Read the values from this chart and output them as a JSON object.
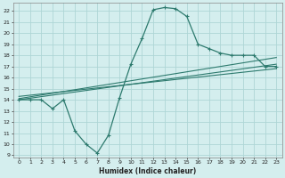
{
  "xlabel": "Humidex (Indice chaleur)",
  "bg_color": "#d4eeee",
  "grid_color": "#aed6d6",
  "line_color": "#2d7a6e",
  "xlim": [
    -0.5,
    23.5
  ],
  "ylim": [
    8.8,
    22.7
  ],
  "yticks": [
    9,
    10,
    11,
    12,
    13,
    14,
    15,
    16,
    17,
    18,
    19,
    20,
    21,
    22
  ],
  "xticks": [
    0,
    1,
    2,
    3,
    4,
    5,
    6,
    7,
    8,
    9,
    10,
    11,
    12,
    13,
    14,
    15,
    16,
    17,
    18,
    19,
    20,
    21,
    22,
    23
  ],
  "main_x": [
    0,
    1,
    2,
    3,
    4,
    5,
    6,
    7,
    8,
    9,
    10,
    11,
    12,
    13,
    14,
    15,
    16,
    17,
    18,
    19,
    20,
    21,
    22,
    23
  ],
  "main_y": [
    14.0,
    14.0,
    14.0,
    13.2,
    14.0,
    11.2,
    10.0,
    9.2,
    10.8,
    14.2,
    17.2,
    19.5,
    22.1,
    22.3,
    22.2,
    21.5,
    19.0,
    18.6,
    18.2,
    18.0,
    18.0,
    18.0,
    17.0,
    17.0
  ],
  "trend1_x": [
    0,
    23
  ],
  "trend1_y": [
    14.0,
    17.2
  ],
  "trend2_x": [
    0,
    23
  ],
  "trend2_y": [
    14.1,
    17.8
  ],
  "trend3_x": [
    0,
    23
  ],
  "trend3_y": [
    14.3,
    16.8
  ]
}
